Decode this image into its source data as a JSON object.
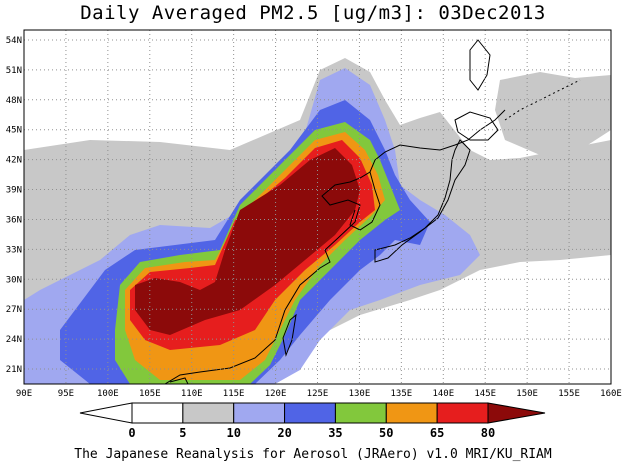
{
  "title": "Daily Averaged PM2.5 [ug/m3]: 03Dec2013",
  "credit": "The Japanese Reanalysis for Aerosol (JRAero) v1.0 MRI/KU_RIAM",
  "map": {
    "lon_range": [
      90,
      160
    ],
    "lat_range": [
      19.5,
      55
    ],
    "lon_ticks": [
      "90E",
      "95E",
      "100E",
      "105E",
      "110E",
      "115E",
      "120E",
      "125E",
      "130E",
      "135E",
      "140E",
      "145E",
      "150E",
      "155E",
      "160E"
    ],
    "lat_ticks": [
      "21N",
      "24N",
      "27N",
      "30N",
      "33N",
      "36N",
      "39N",
      "42N",
      "45N",
      "48N",
      "51N",
      "54N"
    ],
    "grid": true
  },
  "colorbar": {
    "levels": [
      "0",
      "5",
      "10",
      "20",
      "35",
      "50",
      "65",
      "80"
    ],
    "colors": [
      "#ffffff",
      "#c8c8c8",
      "#a0a8f0",
      "#5064e6",
      "#82c83c",
      "#f09614",
      "#e61e1e",
      "#8c0a0a"
    ]
  }
}
